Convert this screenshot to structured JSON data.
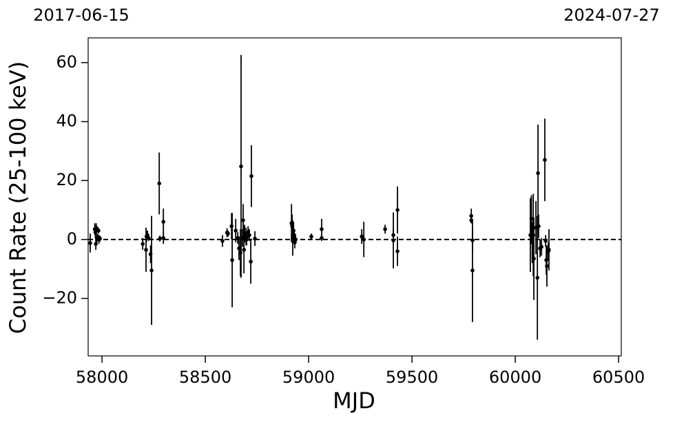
{
  "chart_data": {
    "type": "errorbar",
    "xlabel": "MJD",
    "ylabel": "Count Rate (25-100 keV)",
    "annotations": [
      "2017-06-15",
      "2024-07-27"
    ],
    "xlim": [
      57933,
      60513
    ],
    "ylim": [
      -39.5,
      68.4
    ],
    "xticks": [
      58000,
      58500,
      59000,
      59500,
      60000,
      60500
    ],
    "yticks": [
      {
        "value": -20,
        "label": "−20"
      },
      0,
      20,
      40,
      60
    ],
    "hline": 0,
    "color": "#000000",
    "series": [
      {
        "name": "data",
        "color": "#000000",
        "x": [
          57943,
          57965,
          57968,
          57970,
          57972,
          57975,
          57978,
          57983,
          57985,
          57990,
          58197,
          58213,
          58215,
          58220,
          58225,
          58235,
          58240,
          58277,
          58280,
          58297,
          58297,
          58583,
          58605,
          58610,
          58627,
          58630,
          58647,
          58657,
          58663,
          58670,
          58673,
          58680,
          58683,
          58687,
          58690,
          58697,
          58700,
          58707,
          58713,
          58720,
          58723,
          58740,
          58917,
          58920,
          58923,
          58927,
          58930,
          58933,
          58937,
          59013,
          59063,
          59063,
          59257,
          59267,
          59370,
          59410,
          59410,
          59430,
          59430,
          59787,
          59787,
          59793,
          59793,
          60073,
          60078,
          60082,
          60087,
          60090,
          60100,
          60107,
          60110,
          60113,
          60120,
          60127,
          60143,
          60147,
          60150,
          60153,
          60160,
          60163
        ],
        "values": [
          -1.2,
          3.5,
          2.5,
          -1.5,
          4,
          0.5,
          1,
          3,
          0,
          0.3,
          -1.5,
          -3.5,
          1,
          1.5,
          0.5,
          -5,
          -10.5,
          19,
          0.3,
          6,
          0.5,
          -0.5,
          2.3,
          2,
          4.5,
          -7,
          3,
          0.5,
          -3,
          -4.5,
          24.8,
          0.5,
          6.5,
          -3.5,
          2,
          1,
          0,
          2.5,
          1.5,
          -7.5,
          21.5,
          0.3,
          5.5,
          4.5,
          0.5,
          3,
          1.5,
          -1,
          0,
          1,
          3.5,
          0.5,
          1,
          0,
          3.5,
          -0.3,
          1.5,
          10,
          -4,
          8,
          6.5,
          -0.3,
          -10.5,
          1.5,
          7,
          -1,
          1.5,
          -6.5,
          4,
          -13,
          22.5,
          4.5,
          -3,
          -2.5,
          27,
          -0.5,
          -7,
          -9,
          -4,
          -3.5
        ],
        "errors": [
          3.2,
          2,
          2,
          2,
          1.5,
          1.5,
          1,
          1,
          1.5,
          1,
          2,
          7.5,
          2,
          1.5,
          1,
          3,
          18.5,
          10.5,
          1,
          4.5,
          2,
          2,
          1.5,
          1,
          4.5,
          16,
          4,
          2,
          4,
          8,
          37.8,
          3,
          5.5,
          8,
          3,
          3,
          2,
          2,
          2,
          7.5,
          10.5,
          2.5,
          6.5,
          4,
          6,
          3,
          2,
          2,
          1.5,
          1,
          3.5,
          1,
          2.5,
          6,
          1.5,
          9.5,
          2,
          8,
          5,
          2.5,
          1,
          4,
          17.5,
          12.5,
          8,
          7,
          14,
          14,
          9,
          21,
          16.5,
          4,
          3,
          3,
          14,
          2,
          5,
          7,
          3,
          7
        ]
      }
    ]
  }
}
